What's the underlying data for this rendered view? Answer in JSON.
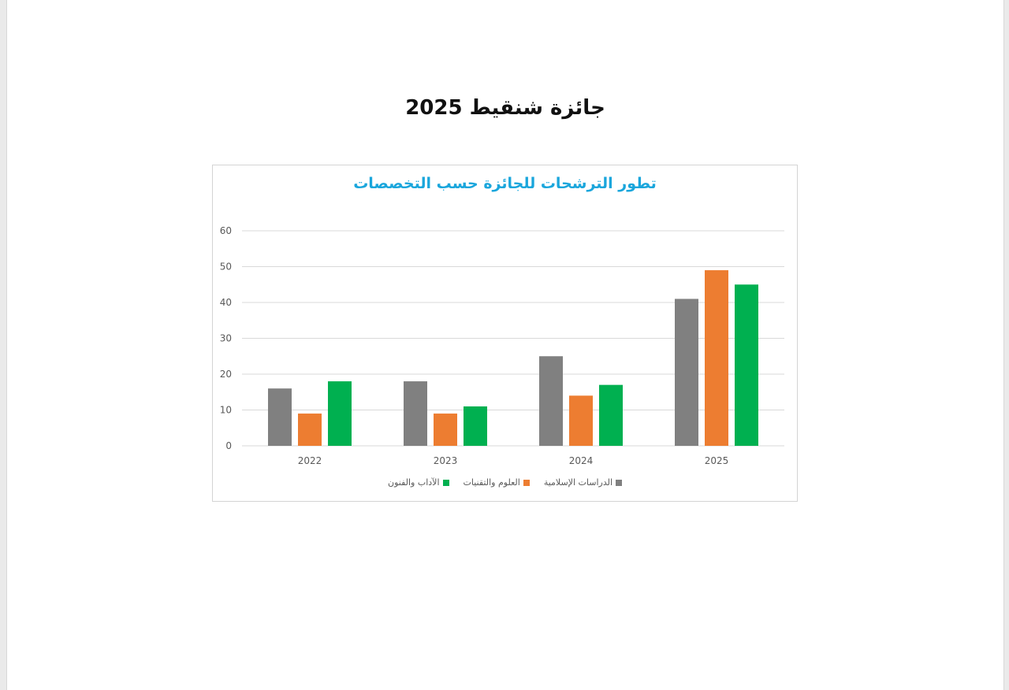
{
  "document": {
    "title": "جائزة شنقيط 2025"
  },
  "colors": {
    "title_blue": "#1aa6dc",
    "gray": "#808080",
    "orange": "#ed7d31",
    "green": "#00b050",
    "grid": "#d9d9d9",
    "axis_text": "#595959"
  },
  "chart_data": {
    "type": "bar",
    "title": "تطور الترشحات للجائزة حسب التخصصات",
    "xlabel": "",
    "ylabel": "",
    "categories": [
      "2022",
      "2023",
      "2024",
      "2025"
    ],
    "series": [
      {
        "name": "الدراسات الإسلامية",
        "values": [
          16,
          18,
          25,
          41
        ],
        "color": "#808080"
      },
      {
        "name": "العلوم والتقنيات",
        "values": [
          9,
          9,
          14,
          49
        ],
        "color": "#ed7d31"
      },
      {
        "name": "الآداب والفنون",
        "values": [
          18,
          11,
          17,
          45
        ],
        "color": "#00b050"
      }
    ],
    "ylim": [
      0,
      60
    ],
    "yticks": [
      0,
      10,
      20,
      30,
      40,
      50,
      60
    ],
    "grid": true,
    "legend_position": "bottom"
  }
}
